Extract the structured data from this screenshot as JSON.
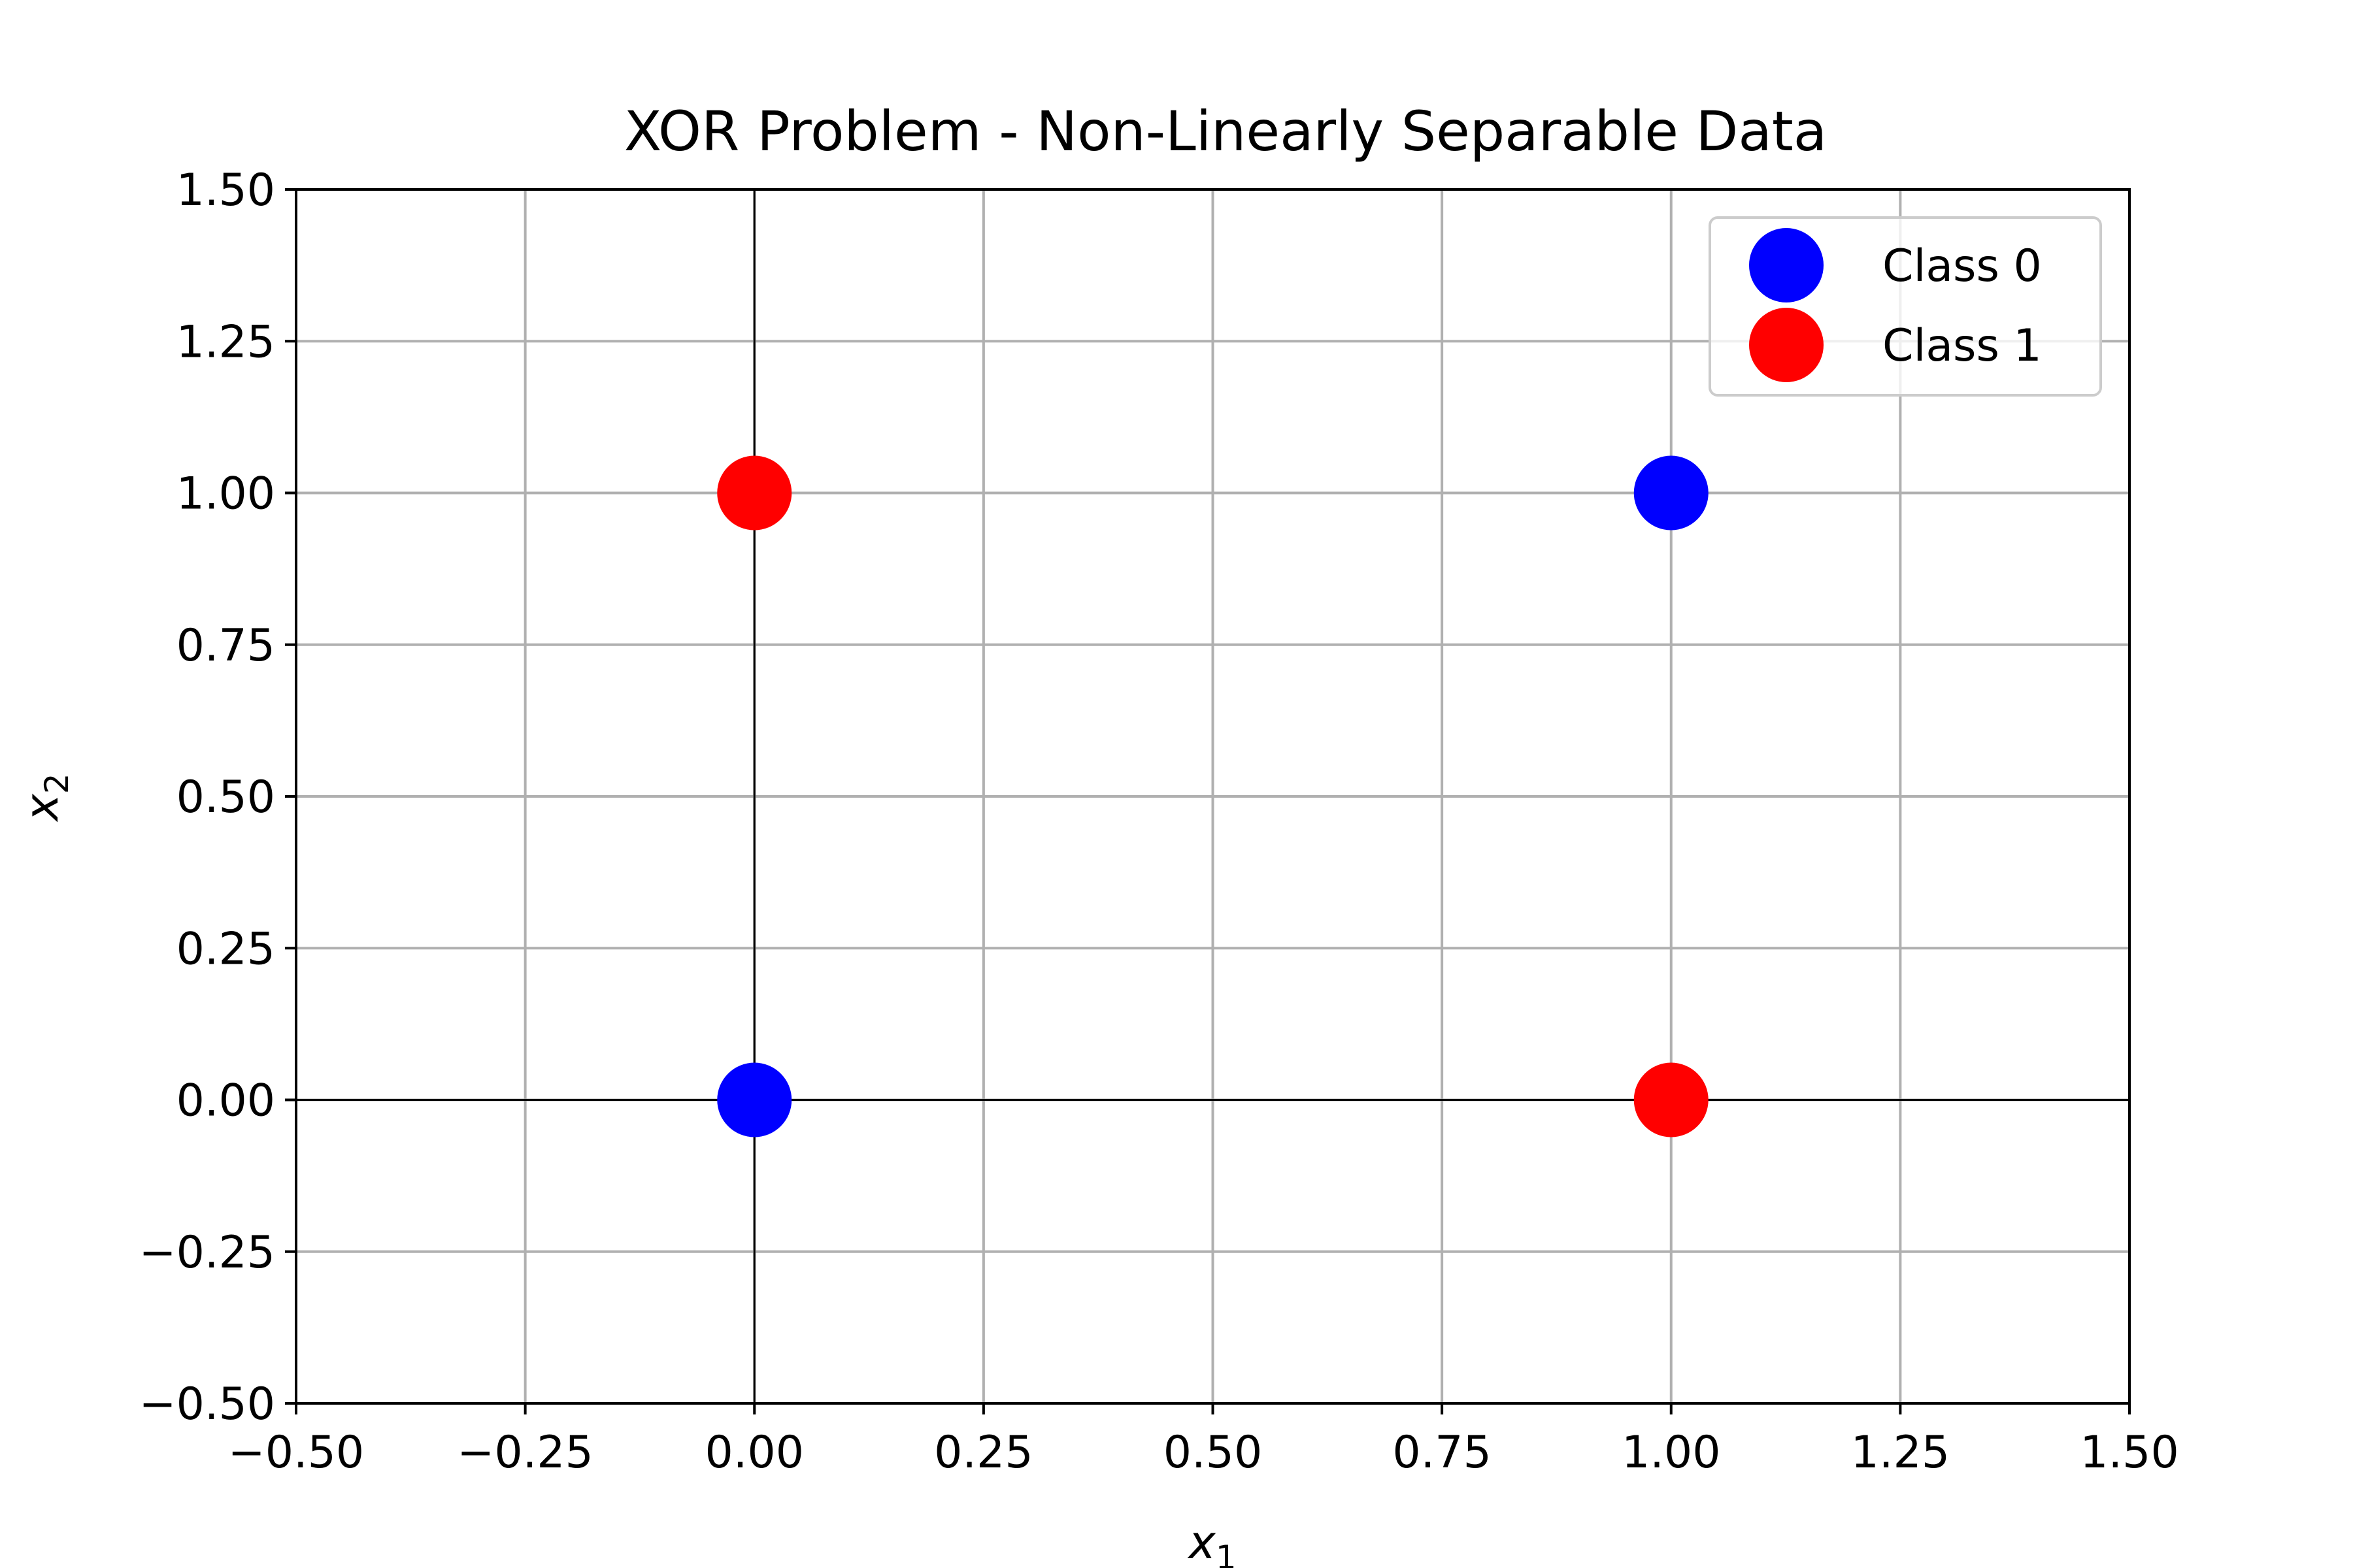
{
  "chart_data": {
    "type": "scatter",
    "title": "XOR Problem - Non-Linearly Separable Data",
    "xlabel": {
      "base": "x",
      "sub": "1"
    },
    "ylabel": {
      "base": "x",
      "sub": "2"
    },
    "xlim": [
      -0.5,
      1.5
    ],
    "ylim": [
      -0.5,
      1.5
    ],
    "xticks": [
      -0.5,
      -0.25,
      0.0,
      0.25,
      0.5,
      0.75,
      1.0,
      1.25,
      1.5
    ],
    "yticks": [
      -0.5,
      -0.25,
      0.0,
      0.25,
      0.5,
      0.75,
      1.0,
      1.25,
      1.5
    ],
    "xtick_labels": [
      "−0.50",
      "−0.25",
      "0.00",
      "0.25",
      "0.50",
      "0.75",
      "1.00",
      "1.25",
      "1.50"
    ],
    "ytick_labels": [
      "−0.50",
      "−0.25",
      "0.00",
      "0.25",
      "0.50",
      "0.75",
      "1.00",
      "1.25",
      "1.50"
    ],
    "grid": true,
    "reference_lines": {
      "x": 0,
      "y": 0
    },
    "legend": "top-right",
    "series": [
      {
        "name": "Class 0",
        "color": "#0000ff",
        "points": [
          [
            0,
            0
          ],
          [
            1,
            1
          ]
        ]
      },
      {
        "name": "Class 1",
        "color": "#ff0000",
        "points": [
          [
            0,
            1
          ],
          [
            1,
            0
          ]
        ]
      }
    ]
  }
}
